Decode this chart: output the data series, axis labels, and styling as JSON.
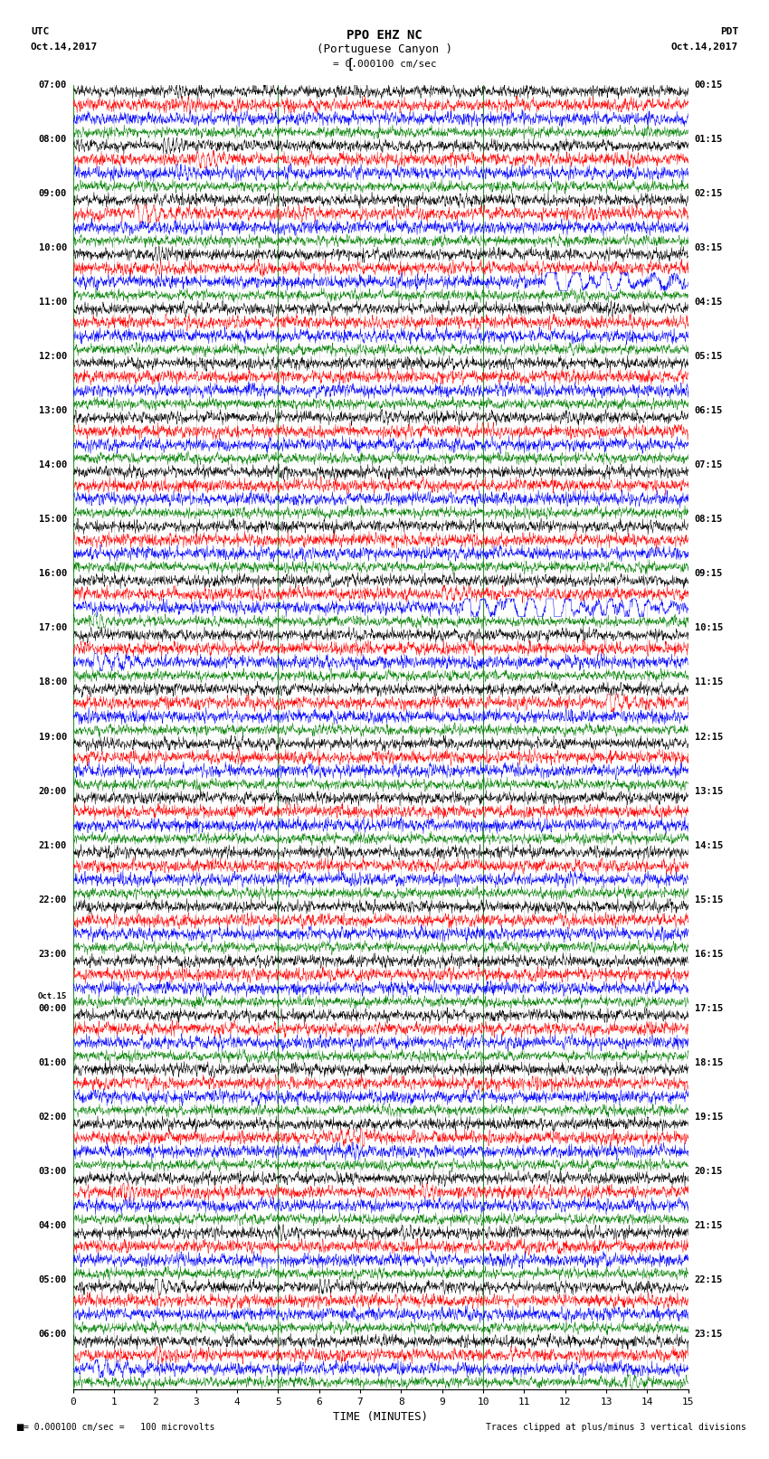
{
  "title_line1": "PPO EHZ NC",
  "title_line2": "(Portuguese Canyon )",
  "scale_label": "= 0.000100 cm/sec",
  "utc_label": "UTC",
  "utc_date": "Oct.14,2017",
  "pdt_label": "PDT",
  "pdt_date": "Oct.14,2017",
  "xlabel": "TIME (MINUTES)",
  "bottom_left": "= 0.000100 cm/sec =   100 microvolts",
  "bottom_right": "Traces clipped at plus/minus 3 vertical divisions",
  "trace_colors": [
    "black",
    "red",
    "blue",
    "green"
  ],
  "num_hour_groups": 24,
  "traces_per_group": 4,
  "minutes_per_trace": 15,
  "bg_color": "white",
  "left_labels_utc": [
    "07:00",
    "08:00",
    "09:00",
    "10:00",
    "11:00",
    "12:00",
    "13:00",
    "14:00",
    "15:00",
    "16:00",
    "17:00",
    "18:00",
    "19:00",
    "20:00",
    "21:00",
    "22:00",
    "23:00",
    "Oct.15\n00:00",
    "01:00",
    "02:00",
    "03:00",
    "04:00",
    "05:00",
    "06:00"
  ],
  "right_labels_pdt": [
    "00:15",
    "01:15",
    "02:15",
    "03:15",
    "04:15",
    "05:15",
    "06:15",
    "07:15",
    "08:15",
    "09:15",
    "10:15",
    "11:15",
    "12:15",
    "13:15",
    "14:15",
    "15:15",
    "16:15",
    "17:15",
    "18:15",
    "19:15",
    "20:15",
    "21:15",
    "22:15",
    "23:15"
  ]
}
